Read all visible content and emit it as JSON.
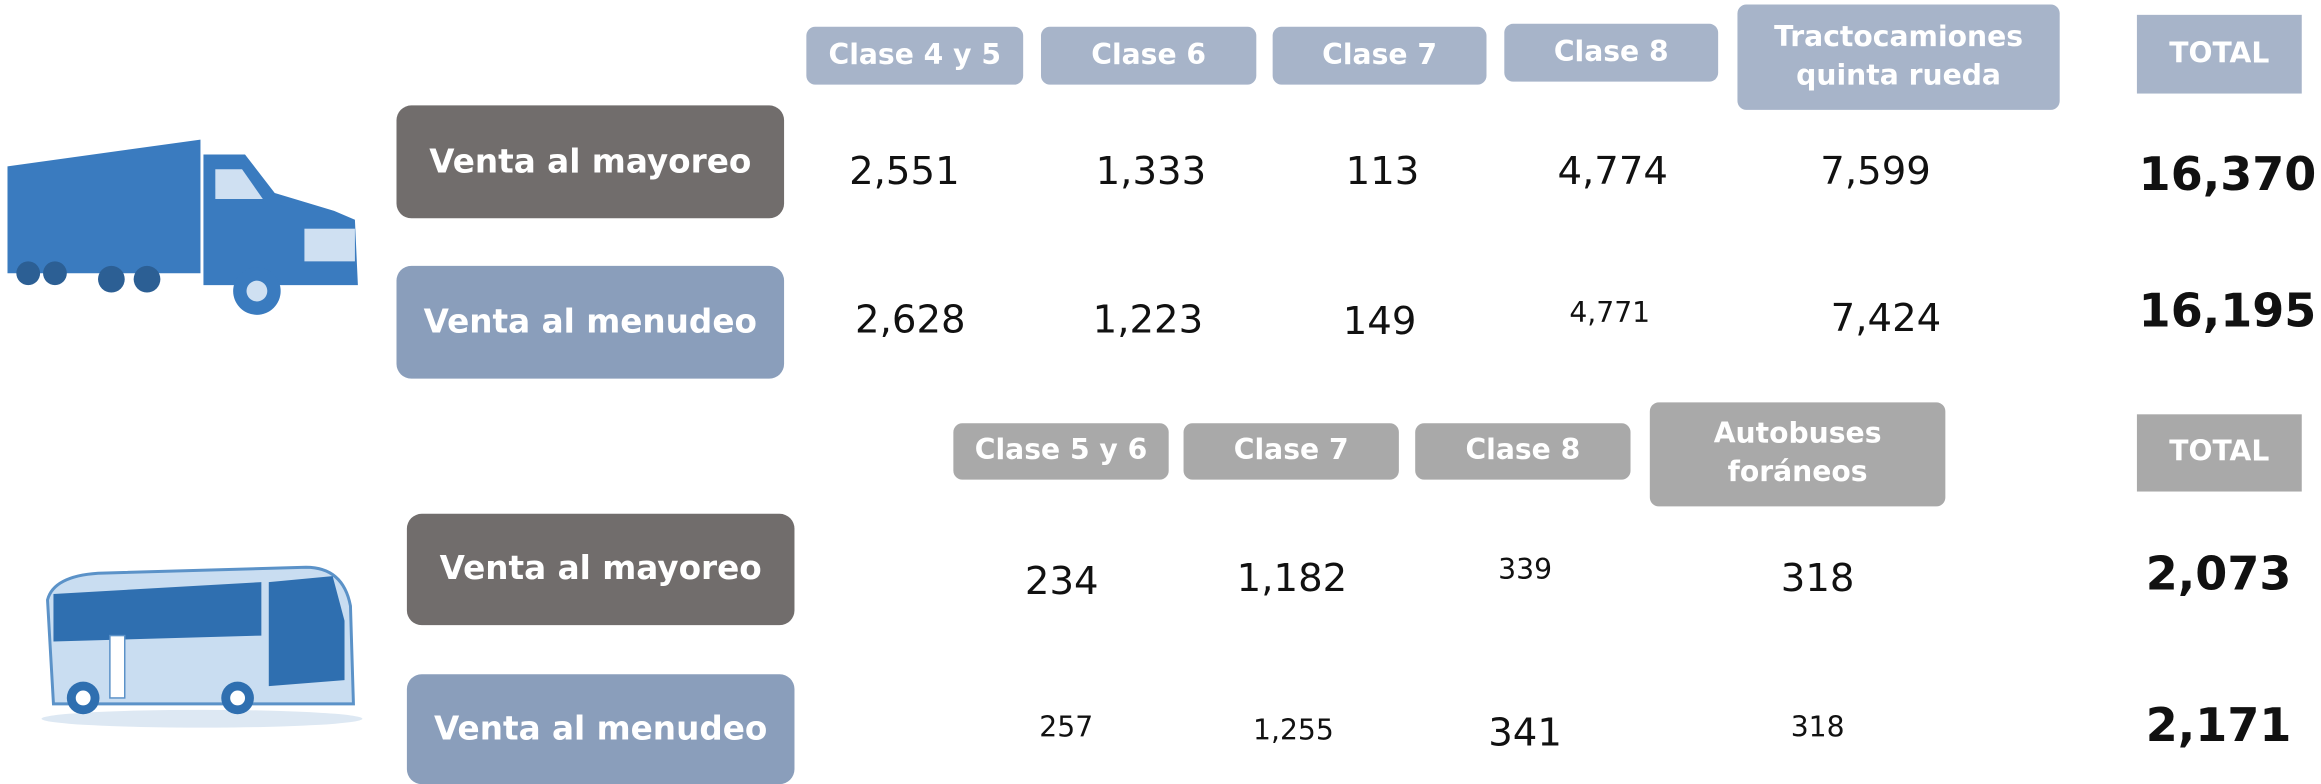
{
  "trucks": {
    "headers": [
      "Clase 4 y 5",
      "Clase 6",
      "Clase 7",
      "Clase 8",
      "Tractocamiones quinta rueda"
    ],
    "total_header": "TOTAL",
    "rows": [
      {
        "label": "Venta al mayoreo",
        "values": [
          "2,551",
          "1,333",
          "113",
          "4,774",
          "7,599"
        ],
        "total": "16,370"
      },
      {
        "label": "Venta al menudeo",
        "values": [
          "2,628",
          "1,223",
          "149",
          "4,771",
          "7,424"
        ],
        "total": "16,195"
      }
    ]
  },
  "buses": {
    "headers": [
      "Clase 5 y 6",
      "Clase 7",
      "Clase 8",
      "Autobuses foráneos"
    ],
    "total_header": "TOTAL",
    "rows": [
      {
        "label": "Venta al mayoreo",
        "values": [
          "234",
          "1,182",
          "339",
          "318"
        ],
        "total": "2,073"
      },
      {
        "label": "Venta al menudeo",
        "values": [
          "257",
          "1,255",
          "341",
          "318"
        ],
        "total": "2,171"
      }
    ]
  }
}
